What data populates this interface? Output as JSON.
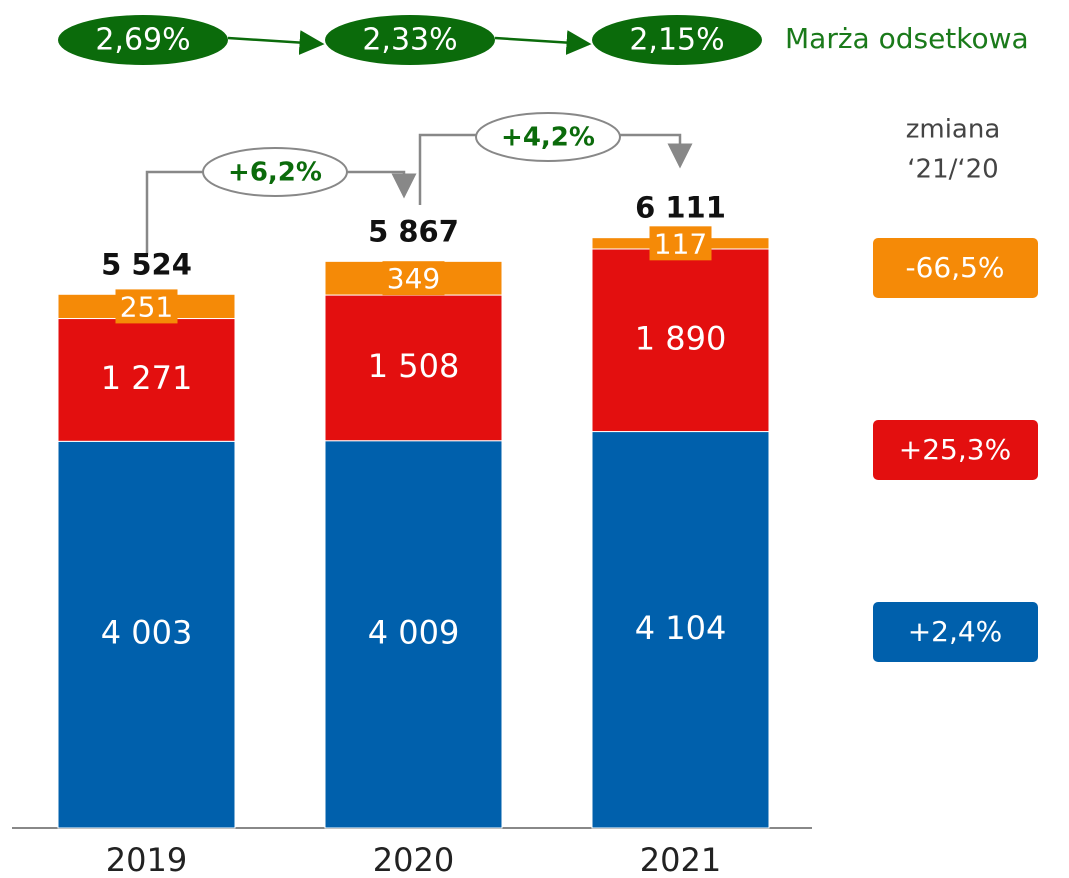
{
  "chart_data": {
    "type": "bar",
    "stacked": true,
    "categories": [
      "2019",
      "2020",
      "2021"
    ],
    "series": [
      {
        "color": "#0060ac",
        "values": [
          4003,
          4009,
          4104
        ],
        "value_labels": [
          "4 003",
          "4 009",
          "4 104"
        ],
        "change": "+2,4%"
      },
      {
        "color": "#e30f0f",
        "values": [
          1271,
          1508,
          1890
        ],
        "value_labels": [
          "1 271",
          "1 508",
          "1 890"
        ],
        "change": "+25,3%"
      },
      {
        "color": "#f58a07",
        "values": [
          251,
          349,
          117
        ],
        "value_labels": [
          "251",
          "349",
          "117"
        ],
        "change": "-66,5%"
      }
    ],
    "totals": [
      5524,
      5867,
      6111
    ],
    "total_labels": [
      "5 524",
      "5 867",
      "6 111"
    ],
    "growth_labels": [
      "+6,2%",
      "+4,2%"
    ],
    "margin": {
      "name": "Marża odsetkowa",
      "labels": [
        "2,69%",
        "2,33%",
        "2,15%"
      ]
    },
    "change_heading": [
      "zmiana",
      "‘21/‘20"
    ]
  }
}
